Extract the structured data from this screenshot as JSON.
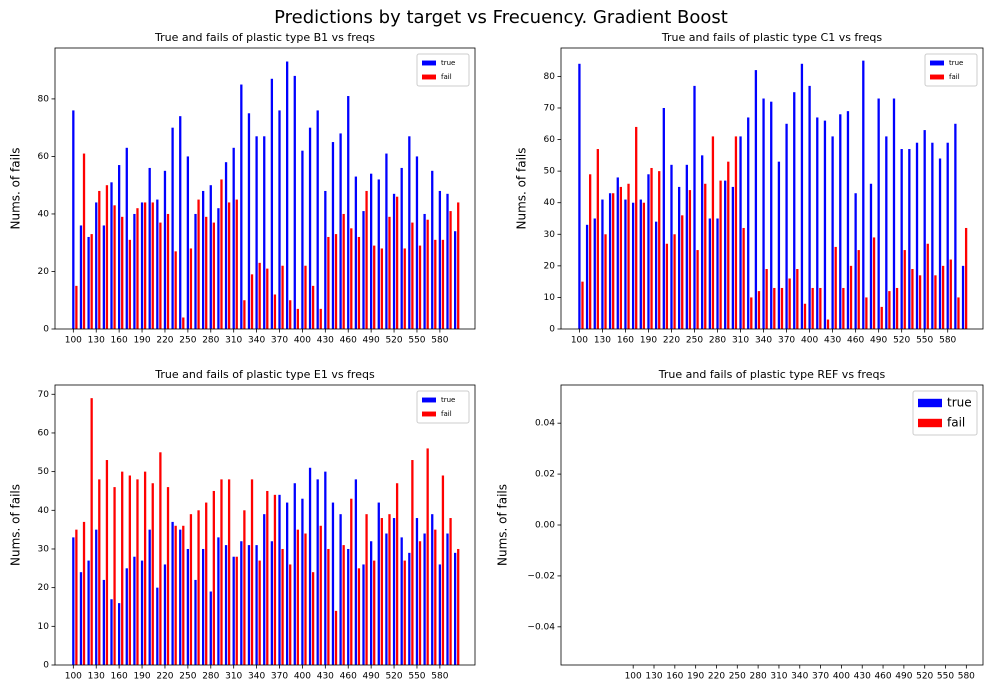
{
  "title": "Predictions by target vs Frecuency. Gradient Boost",
  "chart_data": [
    {
      "type": "bar",
      "title": "True and fails of plastic type B1 vs freqs",
      "ylabel": "Nums. of fails",
      "x": [
        100,
        110,
        120,
        130,
        140,
        150,
        160,
        170,
        180,
        190,
        200,
        210,
        220,
        230,
        240,
        250,
        260,
        270,
        280,
        290,
        300,
        310,
        320,
        330,
        340,
        350,
        360,
        370,
        380,
        390,
        400,
        410,
        420,
        430,
        440,
        450,
        460,
        470,
        480,
        490,
        500,
        510,
        520,
        530,
        540,
        550,
        560,
        570,
        580,
        590,
        600
      ],
      "series": [
        {
          "name": "true",
          "color": "#0000ff",
          "values": [
            76,
            36,
            32,
            44,
            36,
            51,
            57,
            63,
            40,
            44,
            56,
            45,
            55,
            70,
            74,
            60,
            40,
            48,
            50,
            42,
            58,
            63,
            85,
            75,
            67,
            67,
            87,
            76,
            93,
            88,
            62,
            70,
            76,
            48,
            65,
            68,
            81,
            53,
            41,
            54,
            52,
            61,
            47,
            56,
            67,
            60,
            40,
            55,
            48,
            47,
            34
          ]
        },
        {
          "name": "fail",
          "color": "#ff0000",
          "values": [
            15,
            61,
            33,
            48,
            50,
            43,
            39,
            31,
            42,
            44,
            44,
            37,
            40,
            27,
            4,
            28,
            45,
            39,
            37,
            52,
            44,
            45,
            10,
            19,
            23,
            21,
            12,
            22,
            10,
            7,
            22,
            15,
            7,
            32,
            33,
            40,
            35,
            32,
            48,
            29,
            28,
            39,
            46,
            28,
            37,
            29,
            38,
            31,
            31,
            41,
            44
          ]
        }
      ],
      "xlim": [
        76,
        626
      ],
      "ylim": [
        0,
        97.7
      ],
      "xticks": [
        100,
        130,
        160,
        190,
        220,
        250,
        280,
        310,
        340,
        370,
        400,
        430,
        460,
        490,
        520,
        550,
        580
      ],
      "yticks": [
        0,
        20,
        40,
        60,
        80
      ],
      "legend": "upper right"
    },
    {
      "type": "bar",
      "title": "True and fails of plastic type C1 vs freqs",
      "ylabel": "Nums. of fails",
      "x": [
        100,
        110,
        120,
        130,
        140,
        150,
        160,
        170,
        180,
        190,
        200,
        210,
        220,
        230,
        240,
        250,
        260,
        270,
        280,
        290,
        300,
        310,
        320,
        330,
        340,
        350,
        360,
        370,
        380,
        390,
        400,
        410,
        420,
        430,
        440,
        450,
        460,
        470,
        480,
        490,
        500,
        510,
        520,
        530,
        540,
        550,
        560,
        570,
        580,
        590,
        600
      ],
      "series": [
        {
          "name": "true",
          "color": "#0000ff",
          "values": [
            84,
            33,
            35,
            41,
            43,
            48,
            41,
            40,
            41,
            49,
            34,
            70,
            52,
            45,
            52,
            77,
            55,
            35,
            35,
            47,
            45,
            61,
            67,
            82,
            73,
            72,
            53,
            65,
            75,
            84,
            77,
            67,
            66,
            61,
            68,
            69,
            43,
            85,
            46,
            73,
            61,
            73,
            57,
            57,
            59,
            63,
            59,
            54,
            59,
            65,
            20
          ]
        },
        {
          "name": "fail",
          "color": "#ff0000",
          "values": [
            15,
            49,
            57,
            30,
            43,
            45,
            46,
            64,
            40,
            51,
            50,
            27,
            30,
            36,
            44,
            25,
            46,
            61,
            47,
            53,
            61,
            32,
            10,
            12,
            19,
            13,
            13,
            16,
            19,
            8,
            13,
            13,
            3,
            26,
            13,
            20,
            25,
            10,
            29,
            7,
            12,
            13,
            25,
            19,
            17,
            27,
            17,
            20,
            22,
            10,
            32
          ]
        }
      ],
      "xlim": [
        76,
        626
      ],
      "ylim": [
        0,
        89
      ],
      "xticks": [
        100,
        130,
        160,
        190,
        220,
        250,
        280,
        310,
        340,
        370,
        400,
        430,
        460,
        490,
        520,
        550,
        580
      ],
      "yticks": [
        0,
        10,
        20,
        30,
        40,
        50,
        60,
        70,
        80
      ],
      "legend": "upper right"
    },
    {
      "type": "bar",
      "title": "True and fails of plastic type E1 vs freqs",
      "ylabel": "Nums. of fails",
      "x": [
        100,
        110,
        120,
        130,
        140,
        150,
        160,
        170,
        180,
        190,
        200,
        210,
        220,
        230,
        240,
        250,
        260,
        270,
        280,
        290,
        300,
        310,
        320,
        330,
        340,
        350,
        360,
        370,
        380,
        390,
        400,
        410,
        420,
        430,
        440,
        450,
        460,
        470,
        480,
        490,
        500,
        510,
        520,
        530,
        540,
        550,
        560,
        570,
        580,
        590,
        600
      ],
      "series": [
        {
          "name": "true",
          "color": "#0000ff",
          "values": [
            33,
            24,
            27,
            35,
            22,
            17,
            16,
            25,
            28,
            27,
            35,
            20,
            26,
            37,
            35,
            30,
            22,
            30,
            19,
            33,
            31,
            28,
            32,
            31,
            31,
            39,
            32,
            44,
            42,
            47,
            43,
            51,
            48,
            50,
            42,
            39,
            30,
            48,
            26,
            32,
            42,
            34,
            38,
            33,
            29,
            38,
            34,
            39,
            26,
            34,
            29
          ]
        },
        {
          "name": "fail",
          "color": "#ff0000",
          "values": [
            35,
            37,
            69,
            48,
            53,
            46,
            50,
            49,
            48,
            50,
            47,
            55,
            46,
            36,
            36,
            39,
            40,
            42,
            45,
            48,
            48,
            28,
            40,
            48,
            27,
            45,
            44,
            30,
            26,
            35,
            34,
            24,
            36,
            30,
            14,
            31,
            43,
            25,
            39,
            27,
            38,
            39,
            47,
            27,
            53,
            32,
            56,
            35,
            49,
            38,
            30
          ]
        }
      ],
      "xlim": [
        76,
        626
      ],
      "ylim": [
        0,
        72.4
      ],
      "xticks": [
        100,
        130,
        160,
        190,
        220,
        250,
        280,
        310,
        340,
        370,
        400,
        430,
        460,
        490,
        520,
        550,
        580
      ],
      "yticks": [
        0,
        10,
        20,
        30,
        40,
        50,
        60,
        70
      ],
      "legend": "upper right"
    },
    {
      "type": "bar",
      "title": "True and fails of plastic type REF vs freqs",
      "ylabel": "Nums. of fails",
      "x": [],
      "series": [
        {
          "name": "true",
          "color": "#0000ff",
          "values": []
        },
        {
          "name": "fail",
          "color": "#ff0000",
          "values": []
        }
      ],
      "xlim": [
        -4,
        604
      ],
      "ylim": [
        -0.055,
        0.055
      ],
      "xticks": [
        100,
        130,
        160,
        190,
        220,
        250,
        280,
        310,
        340,
        370,
        400,
        430,
        460,
        490,
        520,
        550,
        580
      ],
      "yticks": [
        {
          "value": -0.04,
          "label": "−0.04"
        },
        {
          "value": -0.02,
          "label": "−0.02"
        },
        {
          "value": 0,
          "label": "0.00"
        },
        0.02,
        0.04
      ],
      "legend": "upper right"
    }
  ]
}
